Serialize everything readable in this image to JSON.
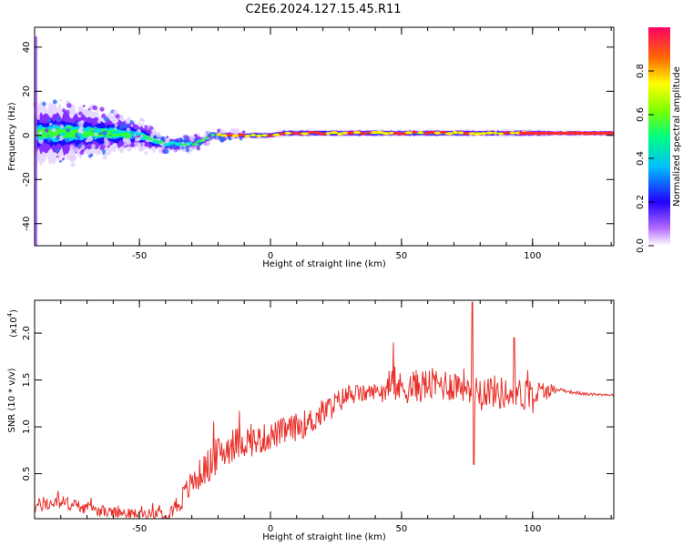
{
  "title": "C2E6.2024.127.15.45.R11",
  "chart_data": [
    {
      "type": "heatmap",
      "xlabel": "Height of straight line (km)",
      "ylabel": "Frequency (Hz)",
      "xlim": [
        -90,
        131
      ],
      "ylim": [
        -50,
        49
      ],
      "xticks": [
        -50,
        0,
        50,
        100
      ],
      "xtick_labels": [
        "-50",
        "0",
        "50",
        "100"
      ],
      "yticks": [
        -40,
        -20,
        0,
        20,
        40
      ],
      "ytick_labels": [
        "-40",
        "-20",
        "0",
        "20",
        "40"
      ],
      "colorbar": {
        "label": "Normalized spectral amplitude",
        "range": [
          0,
          1
        ],
        "ticks": [
          0.0,
          0.2,
          0.4,
          0.6,
          0.8
        ],
        "tick_labels": [
          "0.0",
          "0.2",
          "0.4",
          "0.6",
          "0.8"
        ],
        "colors": [
          "#ffffff",
          "#9933ff",
          "#0000ff",
          "#00ffff",
          "#00ff00",
          "#ffff00",
          "#ff0000",
          "#ff0066"
        ]
      },
      "ridge": {
        "height_km": [
          -90,
          -80,
          -70,
          -60,
          -50,
          -45,
          -40,
          -30,
          -25,
          -22,
          -10,
          0,
          5,
          20,
          40,
          60,
          80,
          100,
          110,
          131
        ],
        "freq_hz": [
          1,
          1,
          1,
          1,
          0,
          -2,
          -4,
          -4,
          -2,
          0,
          0,
          0,
          1,
          1,
          1,
          1,
          1,
          1,
          1,
          1
        ],
        "spread_hz": [
          12,
          12,
          10,
          8,
          6,
          5,
          3,
          3,
          2,
          2,
          1.5,
          1.5,
          1.5,
          1.5,
          1.5,
          1.5,
          1.5,
          1.5,
          1.2,
          1.2
        ]
      },
      "grid": false
    },
    {
      "type": "line",
      "xlabel": "Height of straight line (km)",
      "ylabel": "SNR (10 * v/v)",
      "y_multiplier_label": "(x10",
      "y_multiplier_exp": "4",
      "y_multiplier_close": ")",
      "xlim": [
        -90,
        131
      ],
      "ylim": [
        0.02,
        2.35
      ],
      "xticks": [
        -50,
        0,
        50,
        100
      ],
      "xtick_labels": [
        "-50",
        "0",
        "50",
        "100"
      ],
      "yticks": [
        0.5,
        1.0,
        1.5,
        2.0
      ],
      "ytick_labels": [
        "0.5",
        "1.0",
        "1.5",
        "2.0"
      ],
      "color": "#e8302a",
      "envelope": {
        "x": [
          -90,
          -80,
          -70,
          -60,
          -50,
          -40,
          -35,
          -30,
          -25,
          -20,
          -15,
          -10,
          -5,
          0,
          5,
          10,
          15,
          20,
          25,
          30,
          35,
          40,
          45,
          50,
          55,
          60,
          65,
          70,
          75,
          80,
          85,
          90,
          95,
          100,
          105,
          108,
          110,
          115,
          120,
          131
        ],
        "y": [
          0.15,
          0.2,
          0.13,
          0.08,
          0.07,
          0.08,
          0.18,
          0.4,
          0.55,
          0.7,
          0.8,
          0.85,
          0.85,
          0.9,
          0.95,
          1.0,
          1.05,
          1.15,
          1.25,
          1.35,
          1.35,
          1.38,
          1.4,
          1.42,
          1.43,
          1.45,
          1.45,
          1.45,
          1.45,
          1.4,
          1.38,
          1.35,
          1.35,
          1.35,
          1.38,
          1.4,
          1.4,
          1.37,
          1.35,
          1.34
        ]
      },
      "noise": {
        "x": [
          -90,
          -60,
          -45,
          -35,
          -20,
          0,
          20,
          40,
          45,
          50,
          100,
          110,
          131
        ],
        "amp": [
          0.08,
          0.06,
          0.05,
          0.12,
          0.2,
          0.15,
          0.15,
          0.08,
          0.12,
          0.18,
          0.18,
          0.02,
          0.01
        ]
      },
      "spikes": [
        {
          "x": 47,
          "y": 1.9
        },
        {
          "x": 77,
          "y": 2.33
        },
        {
          "x": 77.6,
          "y": 0.6
        },
        {
          "x": 93,
          "y": 1.95
        }
      ],
      "grid": false
    }
  ]
}
